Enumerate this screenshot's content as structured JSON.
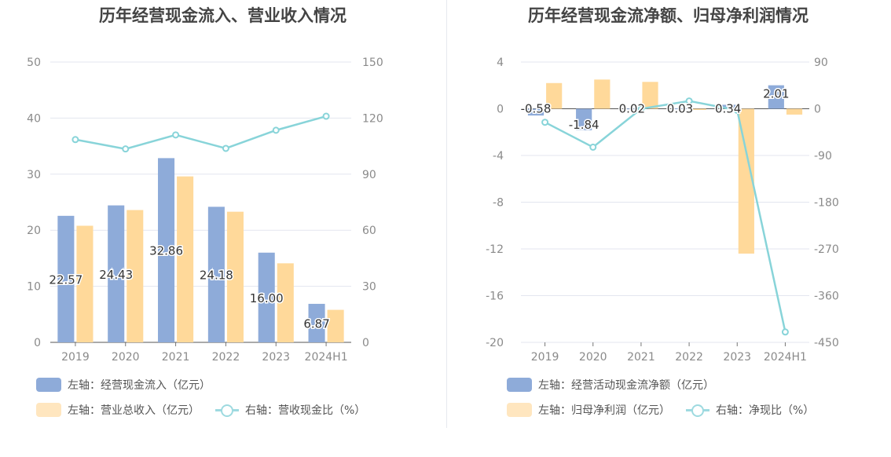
{
  "colors": {
    "blue": "#8eabd9",
    "orange": "#ffd99a",
    "line": "#88d4d9",
    "grid": "#e3e6ef",
    "text": "#8a8a8a"
  },
  "chart_data": [
    {
      "type": "bar",
      "title": "历年经营现金流入、营业收入情况",
      "categories": [
        "2019",
        "2020",
        "2021",
        "2022",
        "2023",
        "2024H1"
      ],
      "left_axis": {
        "min": 0,
        "max": 50,
        "ticks": [
          "0",
          "10",
          "20",
          "30",
          "40",
          "50"
        ]
      },
      "right_axis": {
        "min": 0,
        "max": 150,
        "ticks": [
          "0",
          "30",
          "60",
          "90",
          "120",
          "150"
        ]
      },
      "series": [
        {
          "name": "左轴：经营现金流入（亿元）",
          "axis": "left",
          "kind": "bar",
          "color": "#8eabd9",
          "values": [
            22.57,
            24.43,
            32.86,
            24.18,
            16.0,
            6.87
          ],
          "labels": [
            "22.57",
            "24.43",
            "32.86",
            "24.18",
            "16.00",
            "6.87"
          ]
        },
        {
          "name": "左轴：营业总收入（亿元）",
          "axis": "left",
          "kind": "bar",
          "color": "#ffd99a",
          "values": [
            20.8,
            23.6,
            29.6,
            23.3,
            14.1,
            5.8
          ]
        },
        {
          "name": "右轴：营收现金比（%）",
          "axis": "right",
          "kind": "line",
          "color": "#88d4d9",
          "values": [
            108.5,
            103.5,
            111.0,
            103.8,
            113.5,
            121.0
          ]
        }
      ]
    },
    {
      "type": "bar",
      "title": "历年经营现金流净额、归母净利润情况",
      "categories": [
        "2019",
        "2020",
        "2021",
        "2022",
        "2023",
        "2024H1"
      ],
      "left_axis": {
        "min": -20,
        "max": 4,
        "ticks": [
          "-20",
          "-16",
          "-12",
          "-8",
          "-4",
          "0",
          "4"
        ]
      },
      "right_axis": {
        "min": -450,
        "max": 90,
        "ticks": [
          "-450",
          "-360",
          "-270",
          "-180",
          "-90",
          "0",
          "90"
        ]
      },
      "series": [
        {
          "name": "左轴：经营活动现金流净额（亿元）",
          "axis": "left",
          "kind": "bar",
          "color": "#8eabd9",
          "values": [
            -0.58,
            -1.84,
            0.02,
            0.03,
            0.34,
            2.01
          ],
          "labels": [
            "-0.58",
            "-1.84",
            "0.02",
            "0.03",
            "0.34",
            "2.01"
          ]
        },
        {
          "name": "左轴：归母净利润（亿元）",
          "axis": "left",
          "kind": "bar",
          "color": "#ffd99a",
          "values": [
            2.2,
            2.5,
            2.3,
            -0.1,
            -12.4,
            -0.5
          ]
        },
        {
          "name": "右轴：净现比（%）",
          "axis": "right",
          "kind": "line",
          "color": "#88d4d9",
          "values": [
            -26,
            -74,
            0,
            15,
            -3,
            -430
          ]
        }
      ]
    }
  ]
}
